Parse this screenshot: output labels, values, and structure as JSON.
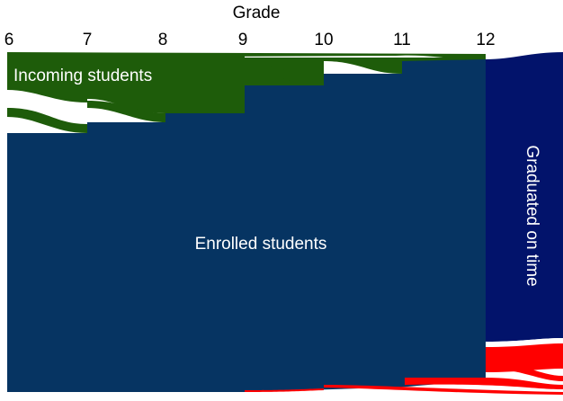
{
  "axis": {
    "title": "Grade",
    "labels": [
      "6",
      "7",
      "8",
      "9",
      "10",
      "11",
      "12"
    ]
  },
  "flows": {
    "incoming": "Incoming students",
    "enrolled": "Enrolled students",
    "graduated": "Graduated on time"
  }
}
